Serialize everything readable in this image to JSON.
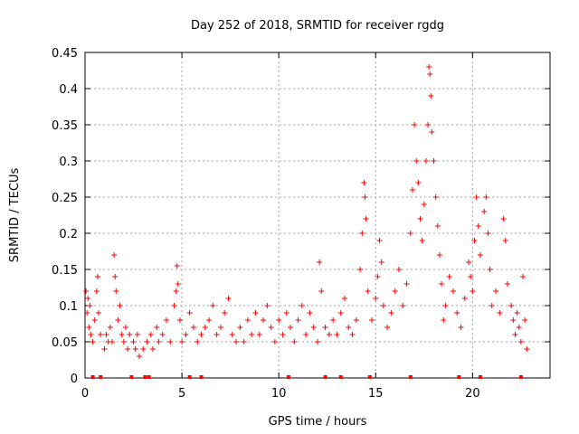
{
  "chart_data": {
    "type": "scatter",
    "title": "Day 252 of 2018, SRMTID for receiver rgdg",
    "xlabel": "GPS time / hours",
    "ylabel": "SRMTID / TECUs",
    "xlim": [
      0,
      24
    ],
    "ylim": [
      0,
      0.45
    ],
    "grid": true,
    "x_ticks": [
      0,
      5,
      10,
      15,
      20
    ],
    "y_ticks": [
      0,
      0.05,
      0.1,
      0.15,
      0.2,
      0.25,
      0.3,
      0.35,
      0.4,
      0.45
    ],
    "x_tick_labels": [
      "0",
      "5",
      "10",
      "15",
      "20"
    ],
    "y_tick_labels": [
      "0",
      "0.05",
      "0.1",
      "0.15",
      "0.2",
      "0.25",
      "0.3",
      "0.35",
      "0.4",
      "0.45"
    ],
    "color": "#ff0000",
    "marker": "plus",
    "series": [
      {
        "name": "SRMTID",
        "points": [
          [
            0.05,
            0.12
          ],
          [
            0.1,
            0.09
          ],
          [
            0.15,
            0.11
          ],
          [
            0.2,
            0.07
          ],
          [
            0.25,
            0.1
          ],
          [
            0.3,
            0.06
          ],
          [
            0.4,
            0.05
          ],
          [
            0.5,
            0.08
          ],
          [
            0.6,
            0.12
          ],
          [
            0.65,
            0.14
          ],
          [
            0.7,
            0.09
          ],
          [
            0.8,
            0.06
          ],
          [
            1.0,
            0.04
          ],
          [
            1.1,
            0.06
          ],
          [
            1.2,
            0.05
          ],
          [
            1.3,
            0.07
          ],
          [
            1.4,
            0.05
          ],
          [
            1.5,
            0.17
          ],
          [
            1.55,
            0.14
          ],
          [
            1.6,
            0.12
          ],
          [
            1.7,
            0.08
          ],
          [
            1.8,
            0.1
          ],
          [
            1.9,
            0.06
          ],
          [
            2.0,
            0.05
          ],
          [
            2.1,
            0.07
          ],
          [
            2.2,
            0.04
          ],
          [
            2.3,
            0.06
          ],
          [
            2.5,
            0.05
          ],
          [
            2.6,
            0.04
          ],
          [
            2.7,
            0.06
          ],
          [
            2.8,
            0.03
          ],
          [
            3.0,
            0.04
          ],
          [
            3.2,
            0.05
          ],
          [
            3.4,
            0.06
          ],
          [
            3.5,
            0.04
          ],
          [
            3.7,
            0.07
          ],
          [
            3.8,
            0.05
          ],
          [
            4.0,
            0.06
          ],
          [
            4.2,
            0.08
          ],
          [
            4.4,
            0.05
          ],
          [
            4.6,
            0.1
          ],
          [
            4.7,
            0.12
          ],
          [
            4.75,
            0.155
          ],
          [
            4.8,
            0.13
          ],
          [
            4.9,
            0.08
          ],
          [
            5.0,
            0.05
          ],
          [
            5.2,
            0.06
          ],
          [
            5.4,
            0.09
          ],
          [
            5.6,
            0.07
          ],
          [
            5.8,
            0.05
          ],
          [
            6.0,
            0.06
          ],
          [
            6.2,
            0.07
          ],
          [
            6.4,
            0.08
          ],
          [
            6.6,
            0.1
          ],
          [
            6.8,
            0.06
          ],
          [
            7.0,
            0.07
          ],
          [
            7.2,
            0.09
          ],
          [
            7.4,
            0.11
          ],
          [
            7.6,
            0.06
          ],
          [
            7.8,
            0.05
          ],
          [
            8.0,
            0.07
          ],
          [
            8.2,
            0.05
          ],
          [
            8.4,
            0.08
          ],
          [
            8.6,
            0.06
          ],
          [
            8.8,
            0.09
          ],
          [
            9.0,
            0.06
          ],
          [
            9.2,
            0.08
          ],
          [
            9.4,
            0.1
          ],
          [
            9.6,
            0.07
          ],
          [
            9.8,
            0.05
          ],
          [
            10.0,
            0.08
          ],
          [
            10.2,
            0.06
          ],
          [
            10.4,
            0.09
          ],
          [
            10.6,
            0.07
          ],
          [
            10.8,
            0.05
          ],
          [
            11.0,
            0.08
          ],
          [
            11.2,
            0.1
          ],
          [
            11.4,
            0.06
          ],
          [
            11.6,
            0.09
          ],
          [
            11.8,
            0.07
          ],
          [
            12.0,
            0.05
          ],
          [
            12.1,
            0.16
          ],
          [
            12.2,
            0.12
          ],
          [
            12.4,
            0.07
          ],
          [
            12.6,
            0.06
          ],
          [
            12.8,
            0.08
          ],
          [
            13.0,
            0.06
          ],
          [
            13.2,
            0.09
          ],
          [
            13.4,
            0.11
          ],
          [
            13.6,
            0.07
          ],
          [
            13.8,
            0.06
          ],
          [
            14.0,
            0.08
          ],
          [
            14.2,
            0.15
          ],
          [
            14.3,
            0.2
          ],
          [
            14.4,
            0.27
          ],
          [
            14.45,
            0.25
          ],
          [
            14.5,
            0.22
          ],
          [
            14.6,
            0.12
          ],
          [
            14.8,
            0.08
          ],
          [
            15.0,
            0.11
          ],
          [
            15.1,
            0.14
          ],
          [
            15.2,
            0.19
          ],
          [
            15.3,
            0.16
          ],
          [
            15.4,
            0.1
          ],
          [
            15.6,
            0.07
          ],
          [
            15.8,
            0.09
          ],
          [
            16.0,
            0.12
          ],
          [
            16.2,
            0.15
          ],
          [
            16.4,
            0.1
          ],
          [
            16.6,
            0.13
          ],
          [
            16.8,
            0.2
          ],
          [
            16.9,
            0.26
          ],
          [
            17.0,
            0.35
          ],
          [
            17.1,
            0.3
          ],
          [
            17.2,
            0.27
          ],
          [
            17.3,
            0.22
          ],
          [
            17.4,
            0.19
          ],
          [
            17.5,
            0.24
          ],
          [
            17.6,
            0.3
          ],
          [
            17.7,
            0.35
          ],
          [
            17.75,
            0.43
          ],
          [
            17.8,
            0.42
          ],
          [
            17.85,
            0.39
          ],
          [
            17.9,
            0.34
          ],
          [
            18.0,
            0.3
          ],
          [
            18.1,
            0.25
          ],
          [
            18.2,
            0.21
          ],
          [
            18.3,
            0.17
          ],
          [
            18.4,
            0.13
          ],
          [
            18.5,
            0.08
          ],
          [
            18.6,
            0.1
          ],
          [
            18.8,
            0.14
          ],
          [
            19.0,
            0.12
          ],
          [
            19.2,
            0.09
          ],
          [
            19.4,
            0.07
          ],
          [
            19.6,
            0.11
          ],
          [
            19.8,
            0.16
          ],
          [
            19.9,
            0.14
          ],
          [
            20.0,
            0.12
          ],
          [
            20.1,
            0.19
          ],
          [
            20.2,
            0.25
          ],
          [
            20.3,
            0.21
          ],
          [
            20.4,
            0.17
          ],
          [
            20.6,
            0.23
          ],
          [
            20.7,
            0.25
          ],
          [
            20.8,
            0.2
          ],
          [
            20.9,
            0.15
          ],
          [
            21.0,
            0.1
          ],
          [
            21.2,
            0.12
          ],
          [
            21.4,
            0.09
          ],
          [
            21.6,
            0.22
          ],
          [
            21.7,
            0.19
          ],
          [
            21.8,
            0.13
          ],
          [
            22.0,
            0.1
          ],
          [
            22.1,
            0.08
          ],
          [
            22.2,
            0.06
          ],
          [
            22.3,
            0.09
          ],
          [
            22.4,
            0.07
          ],
          [
            22.5,
            0.05
          ],
          [
            22.6,
            0.14
          ],
          [
            22.7,
            0.08
          ],
          [
            22.8,
            0.04
          ]
        ]
      }
    ],
    "baseline_markers_x": [
      0.4,
      0.8,
      2.4,
      3.1,
      3.3,
      5.4,
      6.0,
      10.5,
      12.4,
      13.2,
      14.7,
      16.8,
      19.3,
      20.4,
      22.5
    ]
  }
}
